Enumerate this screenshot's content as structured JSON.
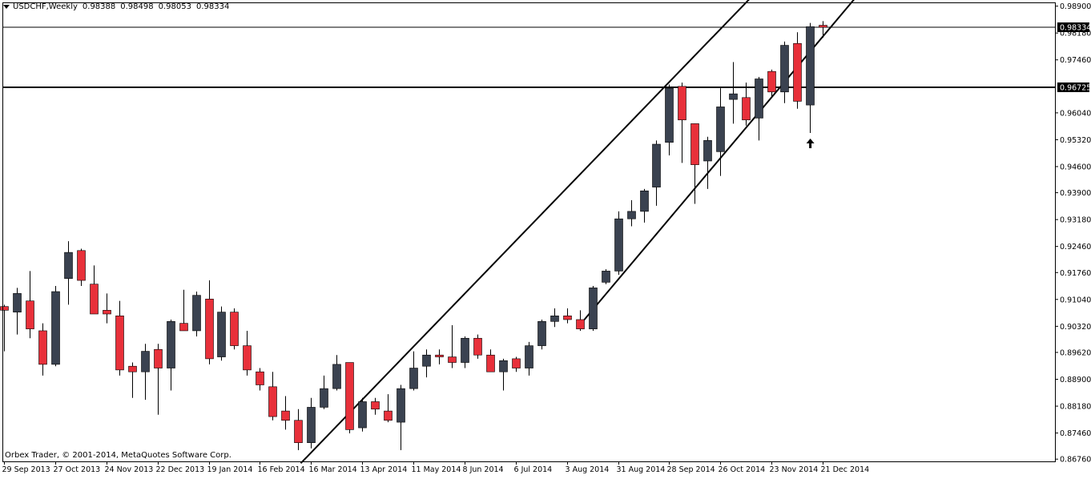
{
  "header": {
    "symbol_label": "USDCHF,Weekly",
    "ohlc": [
      "0.98388",
      "0.98498",
      "0.98053",
      "0.98334"
    ]
  },
  "footer": {
    "copyright": "Orbex Trader, © 2001-2014, MetaQuotes Software Corp."
  },
  "colors": {
    "bull": "#3a4250",
    "bear": "#e8303a",
    "wick": "#000000",
    "background": "#ffffff"
  },
  "chart_data": {
    "type": "candlestick",
    "ylim": [
      0.867,
      0.99
    ],
    "y_ticks": [
      "0.98900",
      "0.98180",
      "0.97460",
      "0.96040",
      "0.95320",
      "0.94600",
      "0.93900",
      "0.93180",
      "0.92460",
      "0.91760",
      "0.91040",
      "0.90320",
      "0.89620",
      "0.88900",
      "0.88180",
      "0.87460",
      "0.86760"
    ],
    "x_labels": [
      {
        "index": 0,
        "label": "29 Sep 2013"
      },
      {
        "index": 4,
        "label": "27 Oct 2013"
      },
      {
        "index": 8,
        "label": "24 Nov 2013"
      },
      {
        "index": 12,
        "label": "22 Dec 2013"
      },
      {
        "index": 16,
        "label": "19 Jan 2014"
      },
      {
        "index": 20,
        "label": "16 Feb 2014"
      },
      {
        "index": 24,
        "label": "16 Mar 2014"
      },
      {
        "index": 28,
        "label": "13 Apr 2014"
      },
      {
        "index": 32,
        "label": "11 May 2014"
      },
      {
        "index": 36,
        "label": "8 Jun 2014"
      },
      {
        "index": 40,
        "label": "6 Jul 2014"
      },
      {
        "index": 44,
        "label": "3 Aug 2014"
      },
      {
        "index": 48,
        "label": "31 Aug 2014"
      },
      {
        "index": 52,
        "label": "28 Sep 2014"
      },
      {
        "index": 56,
        "label": "26 Oct 2014"
      },
      {
        "index": 60,
        "label": "23 Nov 2014"
      },
      {
        "index": 64,
        "label": "21 Dec 2014"
      }
    ],
    "candles": [
      {
        "o": 0.9085,
        "h": 0.909,
        "l": 0.8965,
        "c": 0.9075
      },
      {
        "o": 0.907,
        "h": 0.9135,
        "l": 0.901,
        "c": 0.912
      },
      {
        "o": 0.91,
        "h": 0.918,
        "l": 0.9,
        "c": 0.9025
      },
      {
        "o": 0.902,
        "h": 0.904,
        "l": 0.89,
        "c": 0.893
      },
      {
        "o": 0.893,
        "h": 0.914,
        "l": 0.8925,
        "c": 0.9125
      },
      {
        "o": 0.916,
        "h": 0.926,
        "l": 0.909,
        "c": 0.923
      },
      {
        "o": 0.9235,
        "h": 0.924,
        "l": 0.914,
        "c": 0.9155
      },
      {
        "o": 0.9145,
        "h": 0.9195,
        "l": 0.9065,
        "c": 0.9065
      },
      {
        "o": 0.9075,
        "h": 0.912,
        "l": 0.904,
        "c": 0.9065
      },
      {
        "o": 0.906,
        "h": 0.91,
        "l": 0.89,
        "c": 0.8915
      },
      {
        "o": 0.8925,
        "h": 0.8935,
        "l": 0.884,
        "c": 0.891
      },
      {
        "o": 0.891,
        "h": 0.8985,
        "l": 0.8835,
        "c": 0.8965
      },
      {
        "o": 0.897,
        "h": 0.8985,
        "l": 0.8795,
        "c": 0.892
      },
      {
        "o": 0.892,
        "h": 0.905,
        "l": 0.886,
        "c": 0.9045
      },
      {
        "o": 0.904,
        "h": 0.913,
        "l": 0.902,
        "c": 0.902
      },
      {
        "o": 0.902,
        "h": 0.9125,
        "l": 0.9005,
        "c": 0.9115
      },
      {
        "o": 0.9105,
        "h": 0.9155,
        "l": 0.893,
        "c": 0.8945
      },
      {
        "o": 0.895,
        "h": 0.9085,
        "l": 0.894,
        "c": 0.907
      },
      {
        "o": 0.907,
        "h": 0.908,
        "l": 0.897,
        "c": 0.898
      },
      {
        "o": 0.898,
        "h": 0.902,
        "l": 0.89,
        "c": 0.8915
      },
      {
        "o": 0.891,
        "h": 0.892,
        "l": 0.886,
        "c": 0.8875
      },
      {
        "o": 0.887,
        "h": 0.891,
        "l": 0.878,
        "c": 0.879
      },
      {
        "o": 0.8805,
        "h": 0.8845,
        "l": 0.8755,
        "c": 0.878
      },
      {
        "o": 0.878,
        "h": 0.881,
        "l": 0.87,
        "c": 0.872
      },
      {
        "o": 0.872,
        "h": 0.884,
        "l": 0.8705,
        "c": 0.8815
      },
      {
        "o": 0.8815,
        "h": 0.89,
        "l": 0.881,
        "c": 0.8865
      },
      {
        "o": 0.8865,
        "h": 0.8955,
        "l": 0.886,
        "c": 0.893
      },
      {
        "o": 0.8935,
        "h": 0.8935,
        "l": 0.8745,
        "c": 0.8755
      },
      {
        "o": 0.876,
        "h": 0.884,
        "l": 0.875,
        "c": 0.883
      },
      {
        "o": 0.883,
        "h": 0.884,
        "l": 0.8795,
        "c": 0.881
      },
      {
        "o": 0.8805,
        "h": 0.885,
        "l": 0.8775,
        "c": 0.878
      },
      {
        "o": 0.8775,
        "h": 0.8875,
        "l": 0.87,
        "c": 0.8865
      },
      {
        "o": 0.8865,
        "h": 0.8965,
        "l": 0.886,
        "c": 0.892
      },
      {
        "o": 0.8925,
        "h": 0.897,
        "l": 0.8895,
        "c": 0.8955
      },
      {
        "o": 0.8955,
        "h": 0.897,
        "l": 0.893,
        "c": 0.895
      },
      {
        "o": 0.895,
        "h": 0.9035,
        "l": 0.892,
        "c": 0.8935
      },
      {
        "o": 0.8935,
        "h": 0.9005,
        "l": 0.892,
        "c": 0.9
      },
      {
        "o": 0.9,
        "h": 0.901,
        "l": 0.8945,
        "c": 0.8955
      },
      {
        "o": 0.8955,
        "h": 0.897,
        "l": 0.891,
        "c": 0.891
      },
      {
        "o": 0.891,
        "h": 0.8945,
        "l": 0.886,
        "c": 0.894
      },
      {
        "o": 0.8945,
        "h": 0.895,
        "l": 0.891,
        "c": 0.892
      },
      {
        "o": 0.892,
        "h": 0.899,
        "l": 0.89,
        "c": 0.898
      },
      {
        "o": 0.898,
        "h": 0.905,
        "l": 0.897,
        "c": 0.9045
      },
      {
        "o": 0.9045,
        "h": 0.908,
        "l": 0.903,
        "c": 0.906
      },
      {
        "o": 0.906,
        "h": 0.908,
        "l": 0.904,
        "c": 0.905
      },
      {
        "o": 0.905,
        "h": 0.9075,
        "l": 0.902,
        "c": 0.9025
      },
      {
        "o": 0.9025,
        "h": 0.914,
        "l": 0.902,
        "c": 0.9135
      },
      {
        "o": 0.915,
        "h": 0.9185,
        "l": 0.9145,
        "c": 0.918
      },
      {
        "o": 0.918,
        "h": 0.934,
        "l": 0.917,
        "c": 0.932
      },
      {
        "o": 0.932,
        "h": 0.937,
        "l": 0.93,
        "c": 0.934
      },
      {
        "o": 0.934,
        "h": 0.94,
        "l": 0.931,
        "c": 0.9395
      },
      {
        "o": 0.9405,
        "h": 0.953,
        "l": 0.9355,
        "c": 0.952
      },
      {
        "o": 0.9525,
        "h": 0.968,
        "l": 0.949,
        "c": 0.967
      },
      {
        "o": 0.9675,
        "h": 0.9685,
        "l": 0.947,
        "c": 0.9585
      },
      {
        "o": 0.9575,
        "h": 0.9575,
        "l": 0.936,
        "c": 0.9465
      },
      {
        "o": 0.9475,
        "h": 0.954,
        "l": 0.94,
        "c": 0.953
      },
      {
        "o": 0.95,
        "h": 0.967,
        "l": 0.9435,
        "c": 0.962
      },
      {
        "o": 0.964,
        "h": 0.974,
        "l": 0.9575,
        "c": 0.9655
      },
      {
        "o": 0.9645,
        "h": 0.9685,
        "l": 0.957,
        "c": 0.9585
      },
      {
        "o": 0.959,
        "h": 0.97,
        "l": 0.953,
        "c": 0.9695
      },
      {
        "o": 0.9715,
        "h": 0.972,
        "l": 0.9645,
        "c": 0.966
      },
      {
        "o": 0.966,
        "h": 0.9795,
        "l": 0.963,
        "c": 0.9785
      },
      {
        "o": 0.979,
        "h": 0.982,
        "l": 0.9615,
        "c": 0.9635
      },
      {
        "o": 0.9625,
        "h": 0.9845,
        "l": 0.955,
        "c": 0.9835
      },
      {
        "o": 0.98388,
        "h": 0.98498,
        "l": 0.98053,
        "c": 0.98334
      }
    ],
    "horizontal_lines": [
      {
        "price": 0.98334,
        "label": "0.98334",
        "width": 1
      },
      {
        "price": 0.96725,
        "label": "0.96725",
        "width": 2
      }
    ],
    "trendlines": [
      {
        "from": {
          "index": 23.2,
          "price": 0.8665
        },
        "to": {
          "index": 58.3,
          "price": 0.991
        }
      },
      {
        "from": {
          "index": 45.0,
          "price": 0.9035
        },
        "to": {
          "index": 66.5,
          "price": 0.991
        }
      }
    ],
    "annotation_arrow": {
      "index": 63,
      "price": 0.9535,
      "direction": "up"
    }
  }
}
